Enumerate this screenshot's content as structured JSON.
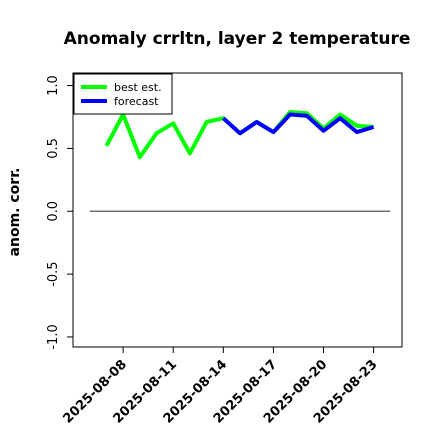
{
  "chart_data": {
    "type": "line",
    "title": "Anomaly crrltn, layer 2 temperature",
    "xlabel": "",
    "ylabel": "anom. corr.",
    "ylim": [
      -1.08,
      1.1
    ],
    "yticks": [
      -1.0,
      -0.5,
      0.0,
      0.5,
      1.0
    ],
    "ytick_labels": [
      "-1.0",
      "-0.5",
      "0.0",
      "0.5",
      "1.0"
    ],
    "xlim": [
      "2025-08-05",
      "2025-08-24.7"
    ],
    "xticks": [
      "2025-08-08",
      "2025-08-11",
      "2025-08-14",
      "2025-08-17",
      "2025-08-20",
      "2025-08-23"
    ],
    "highlight_tick": "2025-08-14",
    "highlight_color": "#228B22",
    "grid": false,
    "legend_position": "top-left",
    "zero_line": {
      "y": 0.0,
      "x_start": "2025-08-06",
      "x_end": "2025-08-24",
      "color": "#555555"
    },
    "series": [
      {
        "name": "best est.",
        "color": "#00ff00",
        "x": [
          "2025-08-07",
          "2025-08-08",
          "2025-08-09",
          "2025-08-10",
          "2025-08-11",
          "2025-08-12",
          "2025-08-13",
          "2025-08-14",
          "2025-08-15",
          "2025-08-16",
          "2025-08-17",
          "2025-08-18",
          "2025-08-19",
          "2025-08-20",
          "2025-08-21",
          "2025-08-22",
          "2025-08-23"
        ],
        "values": [
          0.52,
          0.77,
          0.43,
          0.62,
          0.7,
          0.46,
          0.71,
          0.74,
          0.62,
          0.71,
          0.63,
          0.79,
          0.78,
          0.66,
          0.77,
          0.68,
          0.67
        ]
      },
      {
        "name": "forecast",
        "color": "#0000ff",
        "x": [
          "2025-08-14",
          "2025-08-15",
          "2025-08-16",
          "2025-08-17",
          "2025-08-18",
          "2025-08-19",
          "2025-08-20",
          "2025-08-21",
          "2025-08-22",
          "2025-08-23"
        ],
        "values": [
          0.74,
          0.62,
          0.71,
          0.63,
          0.77,
          0.76,
          0.64,
          0.74,
          0.63,
          0.67
        ]
      }
    ]
  }
}
